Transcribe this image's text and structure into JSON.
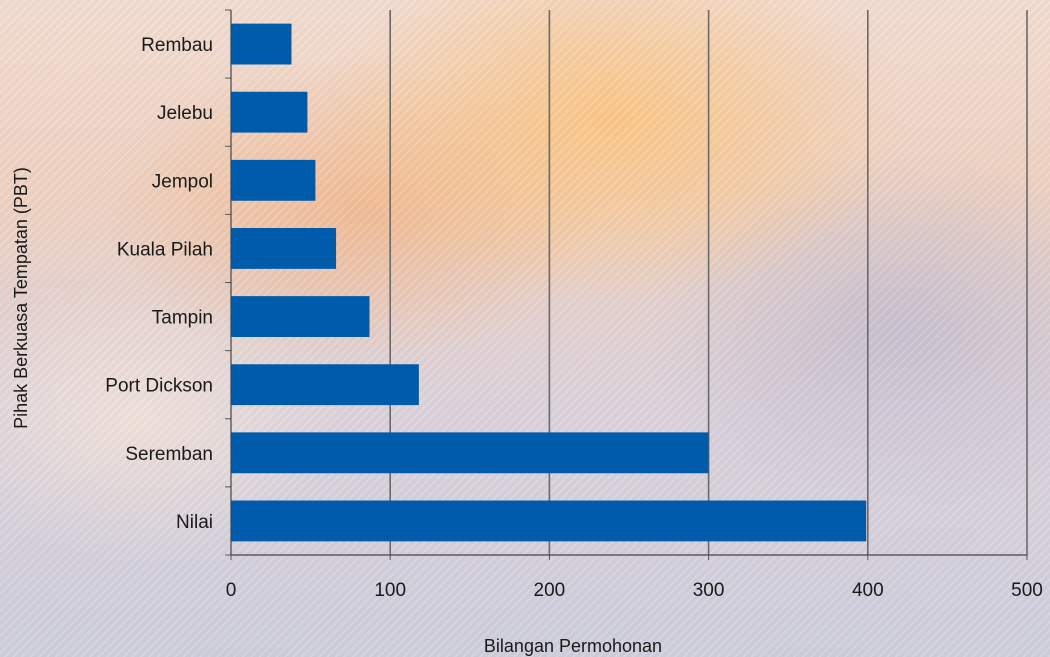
{
  "chart_data": {
    "type": "bar",
    "orientation": "horizontal",
    "categories": [
      "Rembau",
      "Jelebu",
      "Jempol",
      "Kuala Pilah",
      "Tampin",
      "Port Dickson",
      "Seremban",
      "Nilai"
    ],
    "values": [
      38,
      48,
      53,
      66,
      87,
      118,
      300,
      399
    ],
    "title": "",
    "xlabel": "Bilangan Permohonan",
    "ylabel": "Pihak Berkuasa Tempatan (PBT)",
    "xlim": [
      0,
      500
    ],
    "xticks": [
      0,
      100,
      200,
      300,
      400,
      500
    ],
    "grid": "vertical",
    "legend": "none",
    "bar_color": "#005bab",
    "gridline_color": "#6a6a6a"
  }
}
